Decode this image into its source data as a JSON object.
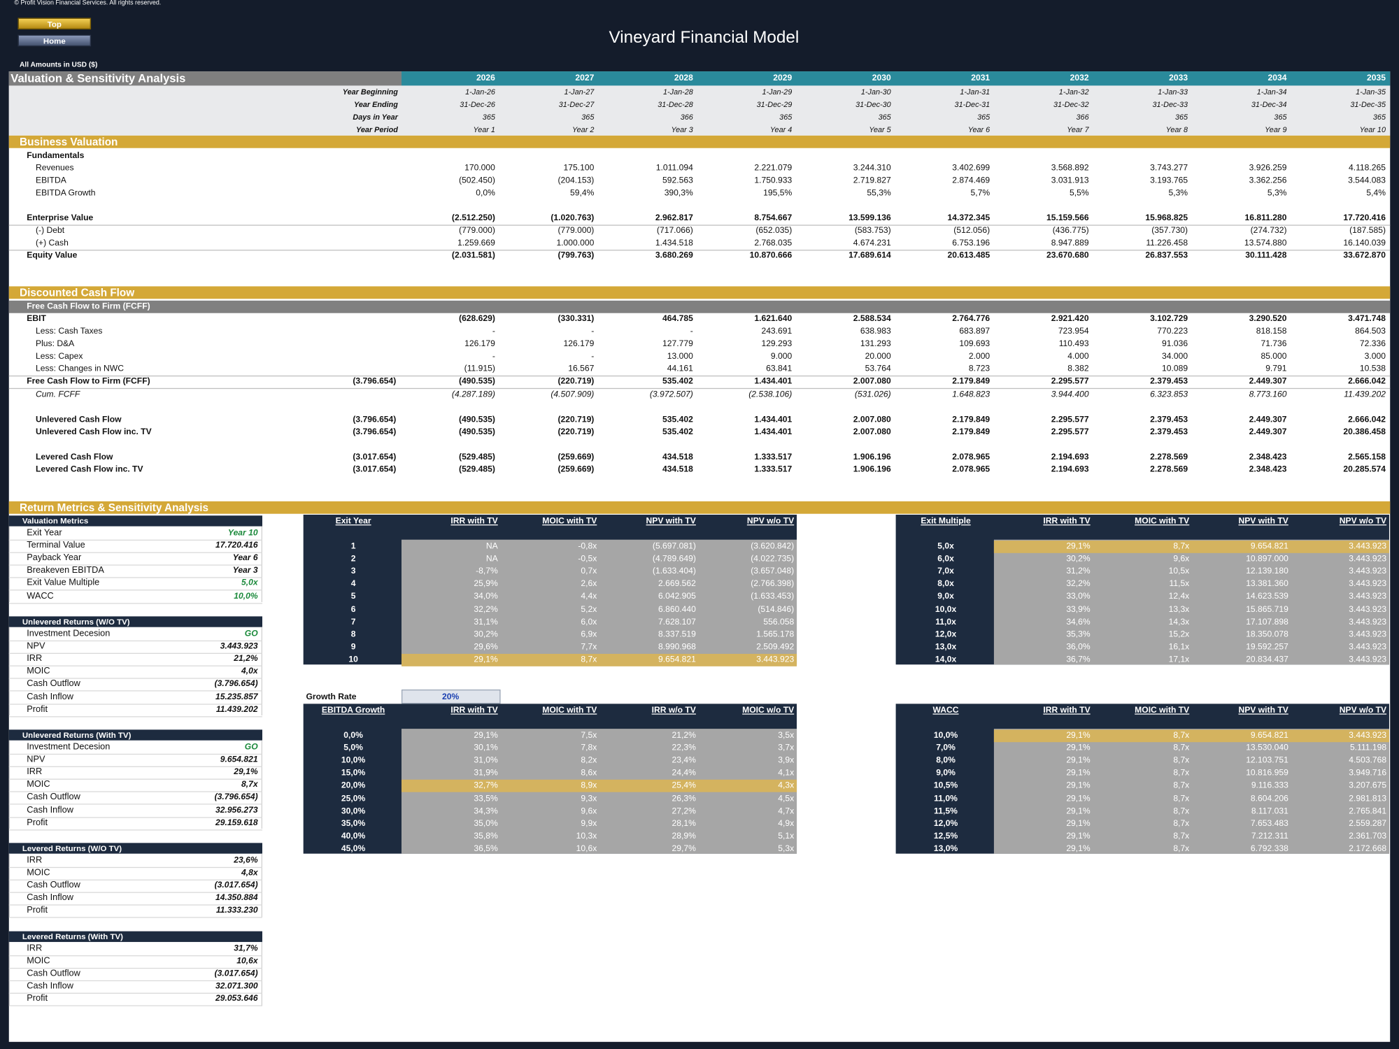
{
  "header": {
    "copyright": "© Profit Vision Financial Services. All rights reserved.",
    "buttons": [
      "Top",
      "Home"
    ],
    "title": "Vineyard Financial Model",
    "currency_note": "All Amounts in  USD ($)"
  },
  "sheet": {
    "title": "Valuation & Sensitivity Analysis",
    "years": [
      2026,
      2027,
      2028,
      2029,
      2030,
      2031,
      2032,
      2033,
      2034,
      2035
    ],
    "timeline": [
      {
        "label": "Year Beginning",
        "values": [
          "1-Jan-26",
          "1-Jan-27",
          "1-Jan-28",
          "1-Jan-29",
          "1-Jan-30",
          "1-Jan-31",
          "1-Jan-32",
          "1-Jan-33",
          "1-Jan-34",
          "1-Jan-35"
        ]
      },
      {
        "label": "Year Ending",
        "values": [
          "31-Dec-26",
          "31-Dec-27",
          "31-Dec-28",
          "31-Dec-29",
          "31-Dec-30",
          "31-Dec-31",
          "31-Dec-32",
          "31-Dec-33",
          "31-Dec-34",
          "31-Dec-35"
        ]
      },
      {
        "label": "Days in Year",
        "values": [
          365,
          365,
          366,
          365,
          365,
          365,
          366,
          365,
          365,
          365
        ]
      },
      {
        "label": "Year Period",
        "values": [
          "Year 1",
          "Year 2",
          "Year 3",
          "Year 4",
          "Year 5",
          "Year 6",
          "Year 7",
          "Year 8",
          "Year 9",
          "Year 10"
        ]
      }
    ],
    "sections": [
      {
        "title": "Business Valuation",
        "rows": [
          {
            "label": "Fundamentals"
          },
          {
            "label": "Revenues",
            "values": [
              "170.000",
              "175.100",
              "1.011.094",
              "2.221.079",
              "3.244.310",
              "3.402.699",
              "3.568.892",
              "3.743.277",
              "3.926.259",
              "4.118.265"
            ]
          },
          {
            "label": "EBITDA",
            "values": [
              "(502.450)",
              "(204.153)",
              "592.563",
              "1.750.933",
              "2.719.827",
              "2.874.469",
              "3.031.913",
              "3.193.765",
              "3.362.256",
              "3.544.083"
            ]
          },
          {
            "label": "EBITDA Growth",
            "values": [
              "0,0%",
              "59,4%",
              "390,3%",
              "195,5%",
              "55,3%",
              "5,7%",
              "5,5%",
              "5,3%",
              "5,3%",
              "5,4%"
            ]
          },
          {
            "label": "Enterprise Value",
            "values": [
              "(2.512.250)",
              "(1.020.763)",
              "2.962.817",
              "8.754.667",
              "13.599.136",
              "14.372.345",
              "15.159.566",
              "15.968.825",
              "16.811.280",
              "17.720.416"
            ]
          },
          {
            "label": "(-) Debt",
            "values": [
              "(779.000)",
              "(779.000)",
              "(717.066)",
              "(652.035)",
              "(583.753)",
              "(512.056)",
              "(436.775)",
              "(357.730)",
              "(274.732)",
              "(187.585)"
            ]
          },
          {
            "label": "(+) Cash",
            "values": [
              "1.259.669",
              "1.000.000",
              "1.434.518",
              "2.768.035",
              "4.674.231",
              "6.753.196",
              "8.947.889",
              "11.226.458",
              "13.574.880",
              "16.140.039"
            ]
          },
          {
            "label": "Equity Value",
            "values": [
              "(2.031.581)",
              "(799.763)",
              "3.680.269",
              "10.870.666",
              "17.689.614",
              "20.613.485",
              "23.670.680",
              "26.837.553",
              "30.111.428",
              "33.672.870"
            ]
          }
        ]
      },
      {
        "title": "Discounted Cash Flow",
        "subtitle": "Free Cash Flow to Firm (FCFF)",
        "rows": [
          {
            "label": "EBIT",
            "values": [
              "(628.629)",
              "(330.331)",
              "464.785",
              "1.621.640",
              "2.588.534",
              "2.764.776",
              "2.921.420",
              "3.102.729",
              "3.290.520",
              "3.471.748"
            ]
          },
          {
            "label": "Less: Cash Taxes",
            "values": [
              "-",
              "-",
              "-",
              "243.691",
              "638.983",
              "683.897",
              "723.954",
              "770.223",
              "818.158",
              "864.503"
            ]
          },
          {
            "label": "Plus: D&A",
            "values": [
              "126.179",
              "126.179",
              "127.779",
              "129.293",
              "131.293",
              "109.693",
              "110.493",
              "91.036",
              "71.736",
              "72.336"
            ]
          },
          {
            "label": "Less: Capex",
            "values": [
              "-",
              "-",
              "13.000",
              "9.000",
              "20.000",
              "2.000",
              "4.000",
              "34.000",
              "85.000",
              "3.000"
            ]
          },
          {
            "label": "Less: Changes in NWC",
            "values": [
              "(11.915)",
              "16.567",
              "44.161",
              "63.841",
              "53.764",
              "8.723",
              "8.382",
              "10.089",
              "9.791",
              "10.538"
            ]
          },
          {
            "label": "Free Cash Flow to Firm (FCFF)",
            "initial": "(3.796.654)",
            "values": [
              "(490.535)",
              "(220.719)",
              "535.402",
              "1.434.401",
              "2.007.080",
              "2.179.849",
              "2.295.577",
              "2.379.453",
              "2.449.307",
              "2.666.042"
            ]
          },
          {
            "label": "Cum. FCFF",
            "values": [
              "(4.287.189)",
              "(4.507.909)",
              "(3.972.507)",
              "(2.538.106)",
              "(531.026)",
              "1.648.823",
              "3.944.400",
              "6.323.853",
              "8.773.160",
              "11.439.202"
            ]
          },
          {
            "label": "Unlevered Cash Flow",
            "initial": "(3.796.654)",
            "values": [
              "(490.535)",
              "(220.719)",
              "535.402",
              "1.434.401",
              "2.007.080",
              "2.179.849",
              "2.295.577",
              "2.379.453",
              "2.449.307",
              "2.666.042"
            ]
          },
          {
            "label": "Unlevered Cash Flow inc. TV",
            "initial": "(3.796.654)",
            "values": [
              "(490.535)",
              "(220.719)",
              "535.402",
              "1.434.401",
              "2.007.080",
              "2.179.849",
              "2.295.577",
              "2.379.453",
              "2.449.307",
              "20.386.458"
            ]
          },
          {
            "label": "Levered Cash Flow",
            "initial": "(3.017.654)",
            "values": [
              "(529.485)",
              "(259.669)",
              "434.518",
              "1.333.517",
              "1.906.196",
              "2.078.965",
              "2.194.693",
              "2.278.569",
              "2.348.423",
              "2.565.158"
            ]
          },
          {
            "label": "Levered Cash Flow inc. TV",
            "initial": "(3.017.654)",
            "values": [
              "(529.485)",
              "(259.669)",
              "434.518",
              "1.333.517",
              "1.906.196",
              "2.078.965",
              "2.194.693",
              "2.278.569",
              "2.348.423",
              "20.285.574"
            ]
          }
        ]
      }
    ]
  },
  "return_metrics": {
    "title": "Return Metrics & Sensitivity Analysis",
    "panels": [
      {
        "title": "Valuation Metrics",
        "rows": [
          {
            "label": "Exit Year",
            "value": "Year 10"
          },
          {
            "label": "Terminal Value",
            "value": "17.720.416"
          },
          {
            "label": "Payback Year",
            "value": "Year 6"
          },
          {
            "label": "Breakeven EBITDA",
            "value": "Year 3"
          },
          {
            "label": "Exit Value Multiple",
            "value": "5,0x"
          },
          {
            "label": "WACC",
            "value": "10,0%"
          }
        ]
      },
      {
        "title": "Unlevered Returns (W/O TV)",
        "rows": [
          {
            "label": "Investment Decesion",
            "value": "GO"
          },
          {
            "label": "NPV",
            "value": "3.443.923"
          },
          {
            "label": "IRR",
            "value": "21,2%"
          },
          {
            "label": "MOIC",
            "value": "4,0x"
          },
          {
            "label": "Cash Outflow",
            "value": "(3.796.654)"
          },
          {
            "label": "Cash Inflow",
            "value": "15.235.857"
          },
          {
            "label": "Profit",
            "value": "11.439.202"
          }
        ]
      },
      {
        "title": "Unlevered Returns (With TV)",
        "rows": [
          {
            "label": "Investment Decesion",
            "value": "GO"
          },
          {
            "label": "NPV",
            "value": "9.654.821"
          },
          {
            "label": "IRR",
            "value": "29,1%"
          },
          {
            "label": "MOIC",
            "value": "8,7x"
          },
          {
            "label": "Cash Outflow",
            "value": "(3.796.654)"
          },
          {
            "label": "Cash Inflow",
            "value": "32.956.273"
          },
          {
            "label": "Profit",
            "value": "29.159.618"
          }
        ]
      },
      {
        "title": "Levered Returns (W/O TV)",
        "rows": [
          {
            "label": "IRR",
            "value": "23,6%"
          },
          {
            "label": "MOIC",
            "value": "4,8x"
          },
          {
            "label": "Cash Outflow",
            "value": "(3.017.654)"
          },
          {
            "label": "Cash Inflow",
            "value": "14.350.884"
          },
          {
            "label": "Profit",
            "value": "11.333.230"
          }
        ]
      },
      {
        "title": "Levered Returns (With TV)",
        "rows": [
          {
            "label": "IRR",
            "value": "31,7%"
          },
          {
            "label": "MOIC",
            "value": "10,6x"
          },
          {
            "label": "Cash Outflow",
            "value": "(3.017.654)"
          },
          {
            "label": "Cash Inflow",
            "value": "32.071.300"
          },
          {
            "label": "Profit",
            "value": "29.053.646"
          }
        ]
      }
    ],
    "growth_rate": {
      "label": "Growth Rate",
      "value": "20%"
    },
    "tables": [
      {
        "headers": [
          "Exit Year",
          "IRR with TV",
          "MOIC with TV",
          "NPV with TV",
          "NPV w/o TV"
        ],
        "rows": [
          [
            "1",
            "NA",
            "-0,8x",
            "(5.697.081)",
            "(3.620.842)"
          ],
          [
            "2",
            "NA",
            "-0,5x",
            "(4.789.649)",
            "(4.022.735)"
          ],
          [
            "3",
            "-8,7%",
            "0,7x",
            "(1.633.404)",
            "(3.657.048)"
          ],
          [
            "4",
            "25,9%",
            "2,6x",
            "2.669.562",
            "(2.766.398)"
          ],
          [
            "5",
            "34,0%",
            "4,4x",
            "6.042.905",
            "(1.633.453)"
          ],
          [
            "6",
            "32,2%",
            "5,2x",
            "6.860.440",
            "(514.846)"
          ],
          [
            "7",
            "31,1%",
            "6,0x",
            "7.628.107",
            "556.058"
          ],
          [
            "8",
            "30,2%",
            "6,9x",
            "8.337.519",
            "1.565.178"
          ],
          [
            "9",
            "29,6%",
            "7,7x",
            "8.990.968",
            "2.509.492"
          ],
          [
            "10",
            "29,1%",
            "8,7x",
            "9.654.821",
            "3.443.923"
          ]
        ]
      },
      {
        "headers": [
          "Exit Multiple",
          "IRR with TV",
          "MOIC with TV",
          "NPV with TV",
          "NPV w/o TV"
        ],
        "rows": [
          [
            "5,0x",
            "29,1%",
            "8,7x",
            "9.654.821",
            "3.443.923"
          ],
          [
            "6,0x",
            "30,2%",
            "9,6x",
            "10.897.000",
            "3.443.923"
          ],
          [
            "7,0x",
            "31,2%",
            "10,5x",
            "12.139.180",
            "3.443.923"
          ],
          [
            "8,0x",
            "32,2%",
            "11,5x",
            "13.381.360",
            "3.443.923"
          ],
          [
            "9,0x",
            "33,0%",
            "12,4x",
            "14.623.539",
            "3.443.923"
          ],
          [
            "10,0x",
            "33,9%",
            "13,3x",
            "15.865.719",
            "3.443.923"
          ],
          [
            "11,0x",
            "34,6%",
            "14,3x",
            "17.107.898",
            "3.443.923"
          ],
          [
            "12,0x",
            "35,3%",
            "15,2x",
            "18.350.078",
            "3.443.923"
          ],
          [
            "13,0x",
            "36,0%",
            "16,1x",
            "19.592.257",
            "3.443.923"
          ],
          [
            "14,0x",
            "36,7%",
            "17,1x",
            "20.834.437",
            "3.443.923"
          ]
        ]
      },
      {
        "headers": [
          "EBITDA Growth",
          "IRR with TV",
          "MOIC with TV",
          "IRR w/o TV",
          "MOIC w/o TV"
        ],
        "rows": [
          [
            "0,0%",
            "29,1%",
            "7,5x",
            "21,2%",
            "3,5x"
          ],
          [
            "5,0%",
            "30,1%",
            "7,8x",
            "22,3%",
            "3,7x"
          ],
          [
            "10,0%",
            "31,0%",
            "8,2x",
            "23,4%",
            "3,9x"
          ],
          [
            "15,0%",
            "31,9%",
            "8,6x",
            "24,4%",
            "4,1x"
          ],
          [
            "20,0%",
            "32,7%",
            "8,9x",
            "25,4%",
            "4,3x"
          ],
          [
            "25,0%",
            "33,5%",
            "9,3x",
            "26,3%",
            "4,5x"
          ],
          [
            "30,0%",
            "34,3%",
            "9,6x",
            "27,2%",
            "4,7x"
          ],
          [
            "35,0%",
            "35,0%",
            "9,9x",
            "28,1%",
            "4,9x"
          ],
          [
            "40,0%",
            "35,8%",
            "10,3x",
            "28,9%",
            "5,1x"
          ],
          [
            "45,0%",
            "36,5%",
            "10,6x",
            "29,7%",
            "5,3x"
          ]
        ]
      },
      {
        "headers": [
          "WACC",
          "IRR with TV",
          "MOIC with TV",
          "NPV with TV",
          "NPV w/o TV"
        ],
        "rows": [
          [
            "10,0%",
            "29,1%",
            "8,7x",
            "9.654.821",
            "3.443.923"
          ],
          [
            "7,0%",
            "29,1%",
            "8,7x",
            "13.530.040",
            "5.111.198"
          ],
          [
            "8,0%",
            "29,1%",
            "8,7x",
            "12.103.751",
            "4.503.768"
          ],
          [
            "9,0%",
            "29,1%",
            "8,7x",
            "10.816.959",
            "3.949.716"
          ],
          [
            "10,5%",
            "29,1%",
            "8,7x",
            "9.116.333",
            "3.207.675"
          ],
          [
            "11,0%",
            "29,1%",
            "8,7x",
            "8.604.206",
            "2.981.813"
          ],
          [
            "11,5%",
            "29,1%",
            "8,7x",
            "8.117.031",
            "2.765.841"
          ],
          [
            "12,0%",
            "29,1%",
            "8,7x",
            "7.653.483",
            "2.559.287"
          ],
          [
            "12,5%",
            "29,1%",
            "8,7x",
            "7.212.311",
            "2.361.703"
          ],
          [
            "13,0%",
            "29,1%",
            "8,7x",
            "6.792.338",
            "2.172.668"
          ]
        ]
      }
    ]
  }
}
